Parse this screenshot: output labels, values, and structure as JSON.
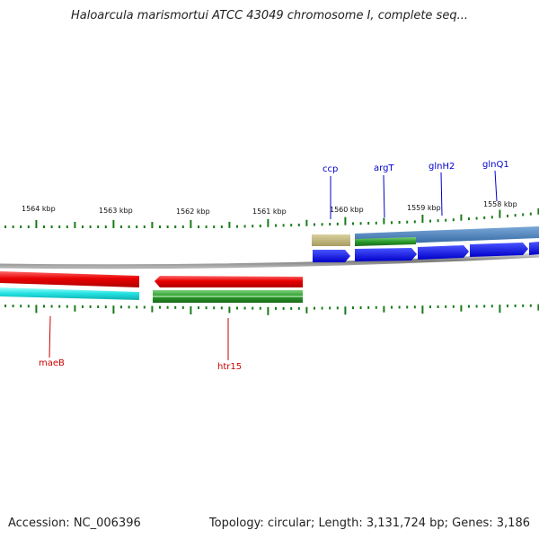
{
  "title": "Haloarcula marismortui ATCC 43049 chromosome I, complete seq...",
  "accession_label": "Accession: NC_006396",
  "topology_label": "Topology: circular; Length: 3,131,724 bp; Genes: 3,186",
  "scale_labels": [
    "1564 kbp",
    "1563 kbp",
    "1562 kbp",
    "1561 kbp",
    "1560 kbp",
    "1559 kbp",
    "1558 kbp"
  ],
  "genes": [
    {
      "name": "ccp",
      "strand": "forward",
      "color": "#0000cc"
    },
    {
      "name": "argT",
      "strand": "forward",
      "color": "#0000cc"
    },
    {
      "name": "glnH2",
      "strand": "forward",
      "color": "#0000cc"
    },
    {
      "name": "glnQ1",
      "strand": "forward",
      "color": "#0000cc"
    },
    {
      "name": "maeB",
      "strand": "reverse",
      "color": "#cc0000"
    },
    {
      "name": "htr15",
      "strand": "reverse",
      "color": "#cc0000"
    }
  ],
  "colors": {
    "forward_cds": "#0a14e6",
    "reverse_cds": "#e80000",
    "gene_green": "#2a9a2a",
    "gene_cyan": "#22e0e0",
    "gene_khaki": "#b8ad78",
    "gene_steelblue": "#3a78b8",
    "backbone": "#8a8a8a",
    "tick": "#1a7a1a"
  }
}
